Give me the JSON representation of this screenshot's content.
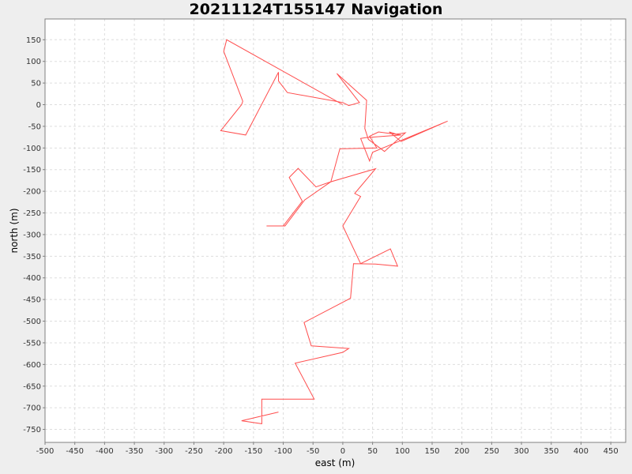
{
  "chart_data": {
    "type": "line",
    "title": "20211124T155147 Navigation",
    "xlabel": "east (m)",
    "ylabel": "north (m)",
    "xlim": [
      -500,
      475
    ],
    "ylim": [
      -780,
      198
    ],
    "xticks": [
      -500,
      -450,
      -400,
      -350,
      -300,
      -250,
      -200,
      -150,
      -100,
      -50,
      0,
      50,
      100,
      150,
      200,
      250,
      300,
      350,
      400,
      450
    ],
    "yticks": [
      150,
      100,
      50,
      0,
      -50,
      -100,
      -150,
      -200,
      -250,
      -300,
      -350,
      -400,
      -450,
      -500,
      -550,
      -600,
      -650,
      -700,
      -750
    ],
    "grid": true,
    "series": [
      {
        "color": "#ff4d4d",
        "x": [
          0,
          -195,
          -200,
          -168,
          -170,
          -205,
          -163,
          -108,
          -108,
          -93,
          0,
          10,
          28,
          -10,
          40,
          37,
          43,
          70,
          105,
          90,
          78,
          98,
          176,
          50,
          45,
          30,
          38,
          98,
          60,
          45,
          57,
          -5,
          -20,
          -45,
          -75,
          -90,
          -68,
          -100,
          -128,
          -97,
          -64,
          -20,
          55,
          20,
          30,
          0,
          30,
          80,
          92,
          55,
          18,
          13,
          -65,
          -53,
          10,
          0,
          -80,
          -48,
          -136,
          -136,
          -170,
          -108
        ],
        "y": [
          0,
          150,
          123,
          8,
          0,
          -60,
          -70,
          75,
          55,
          28,
          5,
          -2,
          5,
          72,
          10,
          -55,
          -80,
          -108,
          -65,
          -68,
          -63,
          -85,
          -38,
          -110,
          -130,
          -78,
          -76,
          -70,
          -63,
          -73,
          -100,
          -102,
          -178,
          -190,
          -147,
          -168,
          -223,
          -280,
          -280,
          -280,
          -220,
          -178,
          -148,
          -205,
          -212,
          -280,
          -367,
          -333,
          -373,
          -368,
          -367,
          -447,
          -503,
          -557,
          -563,
          -572,
          -597,
          -680,
          -680,
          -737,
          -730,
          -710
        ]
      }
    ]
  }
}
